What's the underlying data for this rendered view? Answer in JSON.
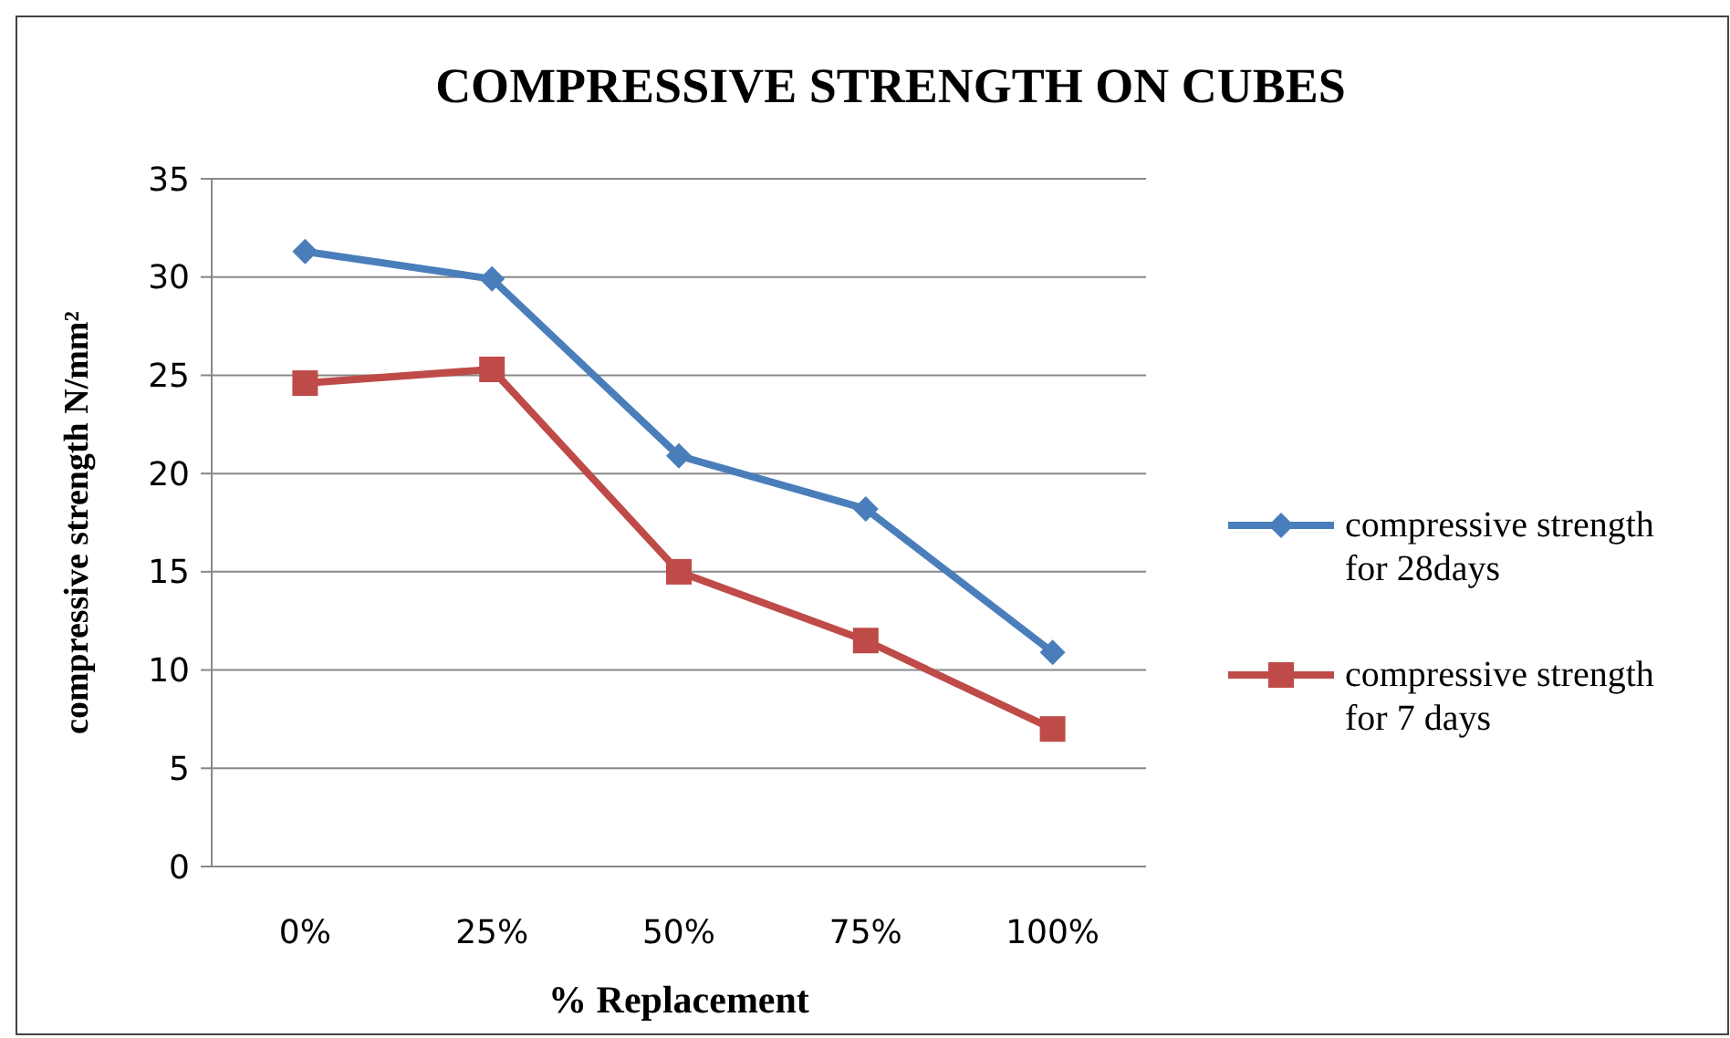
{
  "chart_data": {
    "type": "line",
    "title": "COMPRESSIVE STRENGTH ON CUBES",
    "xlabel": "% Replacement",
    "ylabel": "compressive strength N/mm²",
    "categories": [
      "0%",
      "25%",
      "50%",
      "75%",
      "100%"
    ],
    "series": [
      {
        "name": "compressive strength for 28days",
        "color": "#4a7ebb",
        "marker": "diamond",
        "values": [
          31.3,
          29.9,
          20.9,
          18.2,
          10.9
        ]
      },
      {
        "name": "compressive strength for 7 days",
        "color": "#be4b48",
        "marker": "square",
        "values": [
          24.6,
          25.3,
          15.0,
          11.5,
          7.0
        ]
      }
    ],
    "ylim": [
      0,
      35
    ],
    "yticks": [
      0,
      5,
      10,
      15,
      20,
      25,
      30,
      35
    ],
    "grid": "y",
    "legend": "right",
    "line_style": "solid"
  }
}
